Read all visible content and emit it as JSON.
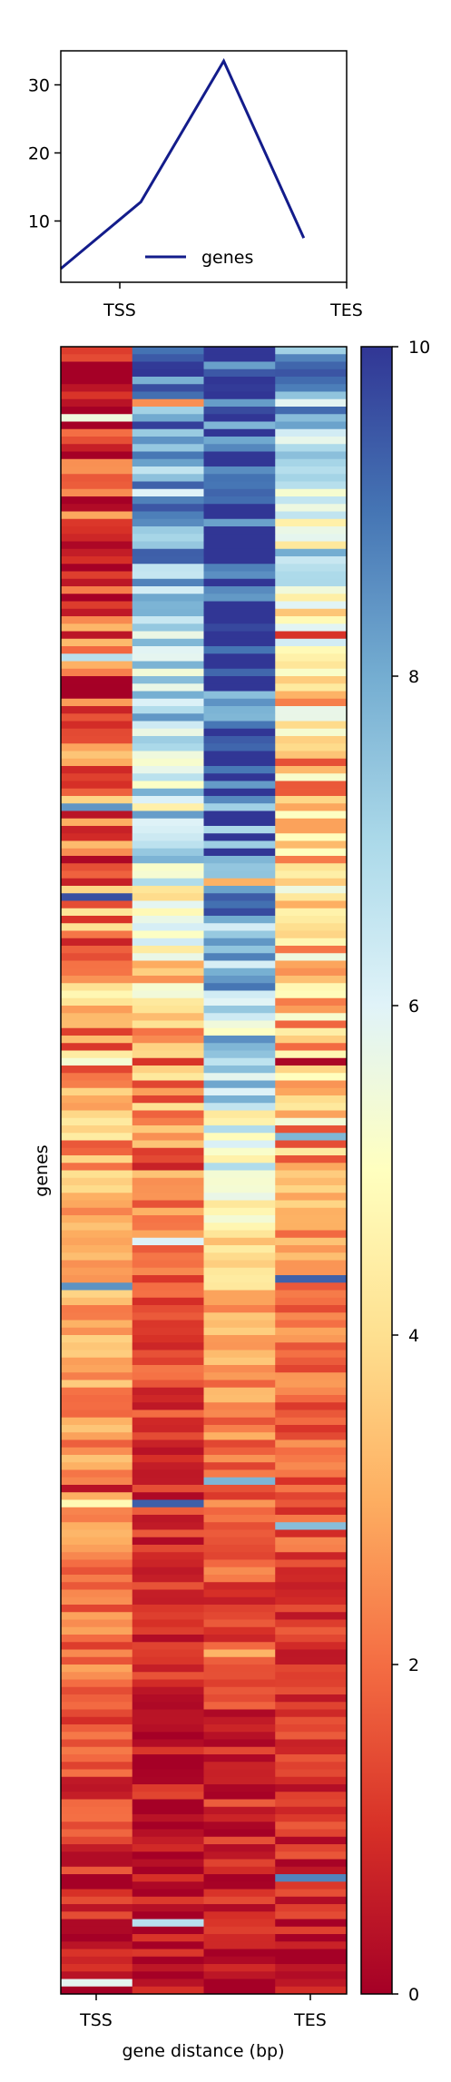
{
  "chart_data": [
    {
      "type": "line",
      "x": [
        0,
        1,
        2,
        3
      ],
      "series": [
        {
          "name": "genes",
          "values": [
            3,
            12.8,
            33.5,
            7.5
          ],
          "color": "#131c8b"
        }
      ],
      "xticks": [
        "TSS",
        "TES"
      ],
      "yticks": [
        10,
        20,
        30
      ],
      "ylim": [
        1,
        35
      ],
      "legend": "bottom-center"
    },
    {
      "type": "heatmap",
      "ylabel": "genes",
      "xlabel": "gene distance (bp)",
      "xticks": [
        "TSS",
        "TES"
      ],
      "columns": 4,
      "rows": 220,
      "colormap": "RdYlBu",
      "colorbar": {
        "min": 0,
        "max": 10,
        "ticks": [
          0,
          2,
          4,
          6,
          8,
          10
        ]
      },
      "column_profiles": [
        [
          [
            0,
            0.6
          ],
          [
            0.25,
            1.6
          ],
          [
            0.45,
            3.2
          ],
          [
            0.6,
            3.0
          ],
          [
            0.8,
            2.0
          ],
          [
            1.0,
            0.2
          ]
        ],
        [
          [
            0,
            8.5
          ],
          [
            0.25,
            7.0
          ],
          [
            0.45,
            3.2
          ],
          [
            0.6,
            1.4
          ],
          [
            0.8,
            0.7
          ],
          [
            1.0,
            0.2
          ]
        ],
        [
          [
            0,
            9.8
          ],
          [
            0.25,
            9.5
          ],
          [
            0.45,
            6.5
          ],
          [
            0.6,
            2.8
          ],
          [
            0.8,
            1.2
          ],
          [
            1.0,
            0.4
          ]
        ],
        [
          [
            0,
            8.5
          ],
          [
            0.25,
            3.5
          ],
          [
            0.45,
            3.8
          ],
          [
            0.6,
            2.0
          ],
          [
            0.8,
            1.2
          ],
          [
            1.0,
            0.5
          ]
        ]
      ]
    }
  ]
}
